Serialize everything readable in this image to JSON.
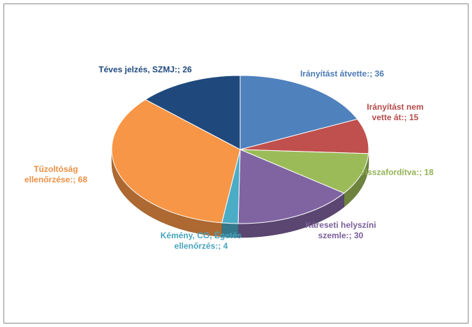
{
  "chart_data": {
    "type": "pie3d",
    "values": [
      36,
      15,
      18,
      30,
      4,
      68,
      26
    ],
    "value_labels": [
      "Irányítást átvette:; 36",
      "Irányítást nem vette át:; 15",
      "Visszafordítva:; 18",
      "Káreseti helyszíni szemle:; 30",
      "Kémény, CO, Égetés ellenőrzés:; 4",
      "Tűzoltóság ellenőrzése:; 68",
      "Téves jelzés, SZMJ:; 26"
    ],
    "colors": [
      "#4f81bd",
      "#c0504d",
      "#9bbb59",
      "#8064a2",
      "#4bacc6",
      "#f79646",
      "#1f497d"
    ]
  }
}
